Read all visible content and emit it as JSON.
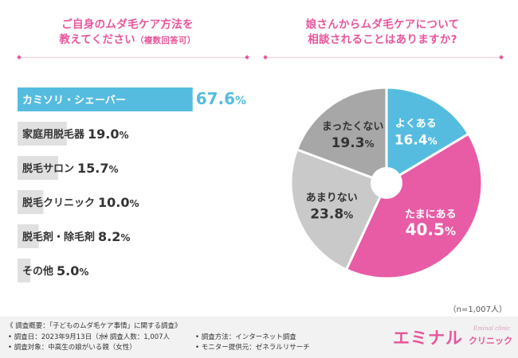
{
  "questions": {
    "left_line1": "ご自身のムダ毛ケア方法を",
    "left_line2": "教えてください",
    "left_note": "（複数回答可）",
    "right_line1": "娘さんからムダ毛ケアについて",
    "right_line2": "相談されることはありますか?"
  },
  "colors": {
    "accent_pink": "#e8559b",
    "bar_blue": "#55bce0",
    "bar_gray": "#e0e0e0",
    "pie_blue": "#55bce0",
    "pie_pink": "#e85ba5",
    "pie_light_gray": "#c9c9c9",
    "pie_dark_gray": "#a7a7a7"
  },
  "chart_data": [
    {
      "type": "bar",
      "orientation": "horizontal",
      "categories": [
        "カミソリ・シェーバー",
        "家庭用脱毛器",
        "脱毛サロン",
        "脱毛クリニック",
        "脱毛剤・除毛剤",
        "その他"
      ],
      "values": [
        67.6,
        19.0,
        15.7,
        10.0,
        8.2,
        5.0
      ],
      "value_labels": [
        "67.6",
        "19.0",
        "15.7",
        "10.0",
        "8.2",
        "5.0"
      ],
      "unit": "%",
      "highlight_index": 0
    },
    {
      "type": "pie",
      "labels": [
        "よくある",
        "たまにある",
        "あまりない",
        "まったくない"
      ],
      "values": [
        16.4,
        40.5,
        23.8,
        19.3
      ],
      "value_labels": [
        "16.4",
        "40.5",
        "23.8",
        "19.3"
      ],
      "unit": "%"
    }
  ],
  "sample_note": "（n=1,007人）",
  "survey": {
    "title": "《 調査概要：「子どものムダ毛ケア事情」に関する調査》",
    "date": "• 調査日：2023年9月13日（水）",
    "count": "• 調査人数：1,007人",
    "target": "• 調査対象：中高生の娘がいる親（女性）",
    "method": "• 調査方法：インターネット調査",
    "monitor": "• モニター提供元：ゼネラルリサーチ"
  },
  "brand": {
    "main": "エミナル",
    "sub": "クリニック",
    "small": "Eminal clinic"
  }
}
